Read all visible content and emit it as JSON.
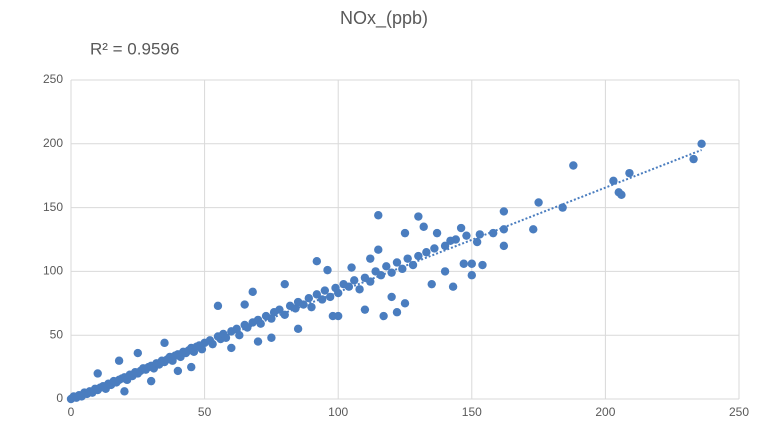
{
  "chart_data": {
    "type": "scatter",
    "title": "NOx_(ppb)",
    "annotation": "R² = 0.9596",
    "xlim": [
      0,
      250
    ],
    "xticks": [
      0,
      50,
      100,
      150,
      200,
      250
    ],
    "ylim": [
      0,
      250
    ],
    "yticks": [
      0,
      50,
      100,
      150,
      200,
      250
    ],
    "grid": true,
    "trendline": true,
    "series": [
      {
        "color": "#4a7dbf",
        "x": [
          0,
          1,
          2,
          3,
          4,
          5,
          6,
          7,
          8,
          9,
          10,
          11,
          12,
          13,
          14,
          15,
          16,
          17,
          18,
          19,
          20,
          21,
          22,
          23,
          24,
          25,
          26,
          27,
          28,
          29,
          30,
          31,
          32,
          33,
          34,
          35,
          36,
          37,
          38,
          39,
          40,
          41,
          42,
          43,
          44,
          45,
          46,
          47,
          48,
          49,
          50,
          52,
          53,
          55,
          56,
          57,
          58,
          60,
          62,
          63,
          65,
          66,
          68,
          70,
          71,
          73,
          75,
          76,
          78,
          80,
          82,
          84,
          85,
          87,
          89,
          90,
          92,
          94,
          95,
          97,
          99,
          100,
          102,
          104,
          106,
          108,
          110,
          112,
          114,
          116,
          118,
          120,
          122,
          124,
          126,
          128,
          130,
          133,
          136,
          140,
          144,
          148,
          10,
          18,
          20,
          25,
          30,
          35,
          40,
          45,
          55,
          60,
          65,
          68,
          70,
          75,
          80,
          85,
          92,
          96,
          98,
          100,
          105,
          110,
          117,
          120,
          122,
          115,
          125,
          130,
          132,
          137,
          142,
          146,
          147,
          150,
          150,
          154,
          153,
          158,
          152,
          143,
          162,
          162,
          162,
          173,
          175,
          184,
          188,
          203,
          205,
          206,
          209,
          233,
          236,
          125,
          135,
          140,
          115,
          112
        ],
        "y": [
          0,
          2,
          1,
          3,
          2,
          5,
          4,
          6,
          5,
          8,
          7,
          9,
          10,
          8,
          12,
          11,
          14,
          13,
          15,
          16,
          17,
          15,
          19,
          18,
          21,
          20,
          22,
          24,
          23,
          25,
          26,
          24,
          28,
          27,
          30,
          29,
          31,
          33,
          30,
          34,
          35,
          33,
          37,
          36,
          38,
          40,
          37,
          41,
          42,
          39,
          44,
          46,
          43,
          49,
          47,
          51,
          48,
          53,
          55,
          50,
          58,
          56,
          60,
          62,
          59,
          65,
          63,
          68,
          70,
          66,
          73,
          71,
          76,
          74,
          79,
          72,
          82,
          78,
          85,
          80,
          87,
          83,
          90,
          88,
          93,
          86,
          95,
          92,
          100,
          97,
          104,
          99,
          107,
          102,
          110,
          105,
          112,
          115,
          118,
          120,
          125,
          128,
          20,
          30,
          6,
          36,
          14,
          44,
          22,
          25,
          73,
          40,
          74,
          84,
          45,
          48,
          90,
          55,
          108,
          101,
          65,
          65,
          103,
          70,
          65,
          80,
          68,
          144,
          130,
          143,
          135,
          130,
          124,
          134,
          106,
          106,
          97,
          105,
          129,
          130,
          123,
          88,
          147,
          133,
          120,
          133,
          154,
          150,
          183,
          171,
          162,
          160,
          177,
          188,
          200,
          75,
          90,
          100,
          117,
          110
        ]
      }
    ]
  }
}
